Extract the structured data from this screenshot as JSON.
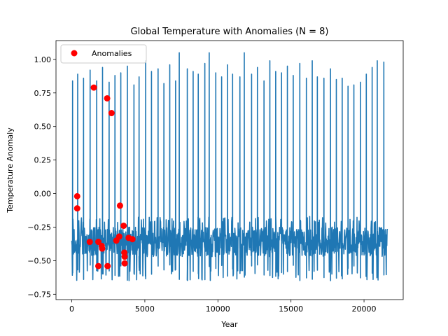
{
  "chart_data": {
    "type": "line",
    "title": "Global Temperature with Anomalies (N = 8)",
    "xlabel": "Year",
    "ylabel": "Temperature Anomaly",
    "xlim": [
      -1080,
      22680
    ],
    "ylim": [
      -0.79,
      1.14
    ],
    "xticks": [
      0,
      5000,
      10000,
      15000,
      20000
    ],
    "xtick_labels": [
      "0",
      "5000",
      "10000",
      "15000",
      "20000"
    ],
    "yticks": [
      -0.75,
      -0.5,
      -0.25,
      0.0,
      0.25,
      0.5,
      0.75,
      1.0
    ],
    "ytick_labels": [
      "−0.75",
      "−0.50",
      "−0.25",
      "0.00",
      "0.25",
      "0.50",
      "0.75",
      "1.00"
    ],
    "grid": false,
    "legend_position": "top-left",
    "series": [
      {
        "kind": "line",
        "color": "#1f77b4",
        "x_range": [
          0,
          21600
        ],
        "baseline": -0.36,
        "noise_band": [
          -0.65,
          -0.22
        ],
        "spike_peaks": [
          [
            50,
            0.84
          ],
          [
            400,
            0.89
          ],
          [
            800,
            0.86
          ],
          [
            1250,
            0.92
          ],
          [
            1700,
            0.84
          ],
          [
            2100,
            0.94
          ],
          [
            2550,
            0.83
          ],
          [
            2950,
            0.88
          ],
          [
            3350,
            0.9
          ],
          [
            3800,
            0.95
          ],
          [
            4250,
            0.81
          ],
          [
            4600,
            0.87
          ],
          [
            5050,
            0.99
          ],
          [
            5450,
            0.91
          ],
          [
            5900,
            0.93
          ],
          [
            6300,
            0.82
          ],
          [
            6700,
            0.96
          ],
          [
            7100,
            0.84
          ],
          [
            7350,
            1.05
          ],
          [
            7900,
            0.93
          ],
          [
            8300,
            0.91
          ],
          [
            8650,
            0.89
          ],
          [
            9100,
            0.97
          ],
          [
            9400,
            1.05
          ],
          [
            9850,
            0.9
          ],
          [
            10250,
            0.87
          ],
          [
            10650,
            0.96
          ],
          [
            11000,
            0.89
          ],
          [
            11500,
            0.87
          ],
          [
            11800,
            1.05
          ],
          [
            12300,
            0.89
          ],
          [
            12700,
            0.94
          ],
          [
            13150,
            0.84
          ],
          [
            13550,
            0.99
          ],
          [
            13950,
            0.91
          ],
          [
            14350,
            0.9
          ],
          [
            14750,
            0.95
          ],
          [
            15150,
            0.88
          ],
          [
            15600,
            0.97
          ],
          [
            16050,
            0.86
          ],
          [
            16450,
            0.99
          ],
          [
            16800,
            0.87
          ],
          [
            17250,
            0.86
          ],
          [
            17700,
            0.93
          ],
          [
            18100,
            0.85
          ],
          [
            18500,
            0.86
          ],
          [
            18900,
            0.8
          ],
          [
            19300,
            0.81
          ],
          [
            19750,
            0.83
          ],
          [
            20150,
            0.89
          ],
          [
            20550,
            0.94
          ],
          [
            20900,
            0.99
          ],
          [
            21350,
            0.98
          ]
        ]
      },
      {
        "name": "Anomalies",
        "kind": "scatter",
        "color": "#ff0000",
        "points": [
          [
            370,
            -0.02
          ],
          [
            370,
            -0.11
          ],
          [
            1230,
            -0.36
          ],
          [
            1510,
            0.79
          ],
          [
            1820,
            -0.36
          ],
          [
            1820,
            -0.54
          ],
          [
            2050,
            -0.39
          ],
          [
            2080,
            -0.41
          ],
          [
            2420,
            0.71
          ],
          [
            2450,
            -0.54
          ],
          [
            2720,
            0.6
          ],
          [
            3050,
            -0.35
          ],
          [
            3250,
            -0.32
          ],
          [
            3300,
            -0.09
          ],
          [
            3550,
            -0.24
          ],
          [
            3600,
            -0.44
          ],
          [
            3620,
            -0.47
          ],
          [
            3620,
            -0.52
          ],
          [
            3890,
            -0.33
          ],
          [
            4150,
            -0.34
          ]
        ]
      }
    ]
  }
}
